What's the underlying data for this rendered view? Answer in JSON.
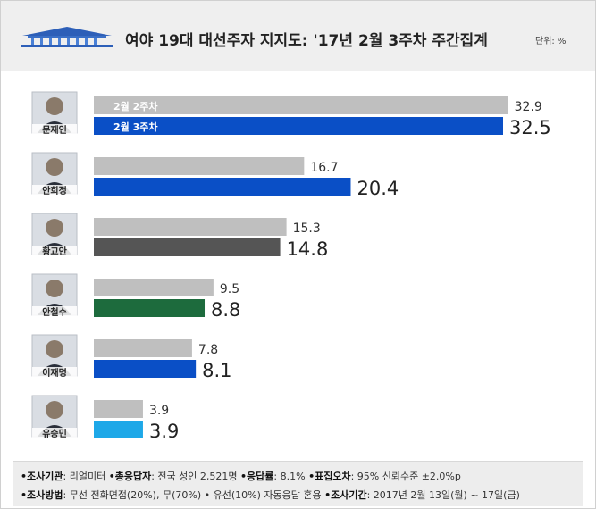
{
  "header": {
    "title": "여야 19대 대선주자 지지도: '17년 2월 3주차 주간집계",
    "unit": "단위: %"
  },
  "colors": {
    "previous": "#bfbfbf",
    "moon": "#0a4fc6",
    "ahn_hj": "#0a4fc6",
    "hwang": "#555555",
    "ahn_cs": "#1d6b3d",
    "lee": "#0a4fc6",
    "yoo": "#1ea8e8"
  },
  "chart_data": {
    "type": "bar",
    "orientation": "horizontal",
    "categories": [
      "문재인",
      "안희정",
      "황교안",
      "안철수",
      "이재명",
      "유승민"
    ],
    "series": [
      {
        "name": "2월 2주차",
        "values": [
          32.9,
          16.7,
          15.3,
          9.5,
          7.8,
          3.9
        ]
      },
      {
        "name": "2월 3주차",
        "values": [
          32.5,
          20.4,
          14.8,
          8.8,
          8.1,
          3.9
        ]
      }
    ],
    "xlim": [
      0,
      40
    ]
  },
  "footer": {
    "line1": [
      {
        "label": "•조사기관",
        "value": ": 리얼미터 "
      },
      {
        "label": "•총응답자",
        "value": ": 전국 성인 2,521명 "
      },
      {
        "label": "•응답률",
        "value": ": 8.1% "
      },
      {
        "label": "•표집오차",
        "value": ": 95% 신뢰수준 ±2.0%p"
      }
    ],
    "line2": [
      {
        "label": "•조사방법",
        "value": ": 무선 전화면접(20%), 무(70%) • 유선(10%) 자동응답 혼용 "
      },
      {
        "label": "•조사기간",
        "value": ": 2017년 2월 13일(월) ~ 17일(금)"
      }
    ]
  }
}
